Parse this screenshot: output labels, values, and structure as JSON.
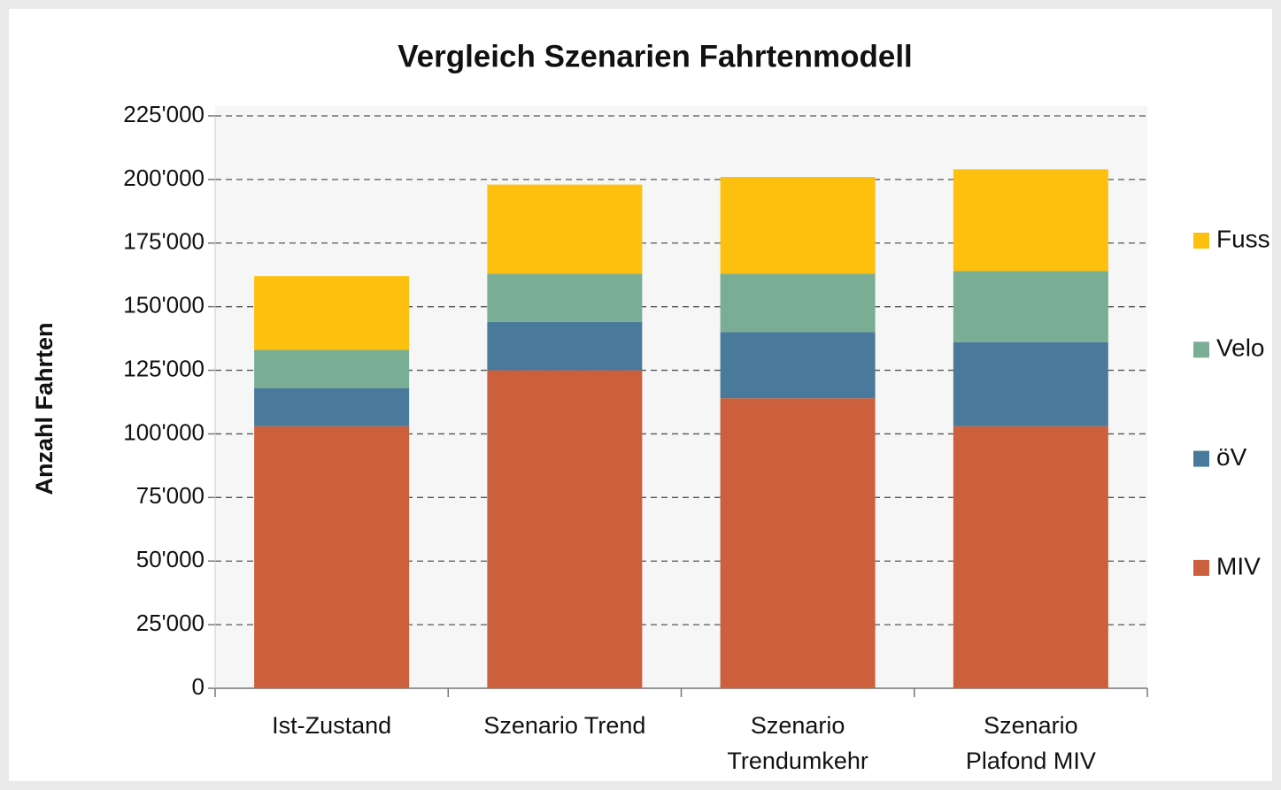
{
  "chart_data": {
    "type": "stacked_bar",
    "title": "Vergleich Szenarien Fahrtenmodell",
    "ylabel": "Anzahl Fahrten",
    "categories": [
      "Ist-Zustand",
      "Szenario Trend",
      "Szenario\nTrendumkehr",
      "Szenario\nPlafond MIV"
    ],
    "series": [
      {
        "name": "MIV",
        "color": "#cc5f3c",
        "values": [
          103000,
          125000,
          114000,
          103000
        ]
      },
      {
        "name": "öV",
        "color": "#4a7a9b",
        "values": [
          15000,
          19000,
          26000,
          33000
        ]
      },
      {
        "name": "Velo",
        "color": "#7aae94",
        "values": [
          15000,
          19000,
          23000,
          28000
        ]
      },
      {
        "name": "Fuss",
        "color": "#fec00f",
        "values": [
          29000,
          35000,
          38000,
          40000
        ]
      }
    ],
    "ylim": [
      0,
      225000
    ],
    "yticks": [
      0,
      {
        "value": 25000,
        "label": "25'000"
      },
      {
        "value": 50000,
        "label": "50'000"
      },
      {
        "value": 75000,
        "label": "75'000"
      },
      {
        "value": 100000,
        "label": "100'000"
      },
      {
        "value": 125000,
        "label": "125'000"
      },
      {
        "value": 150000,
        "label": "150'000"
      },
      {
        "value": 175000,
        "label": "175'000"
      },
      {
        "value": 200000,
        "label": "200'000"
      },
      {
        "value": 225000,
        "label": "225'000"
      }
    ],
    "grid": true,
    "legend": "right"
  }
}
